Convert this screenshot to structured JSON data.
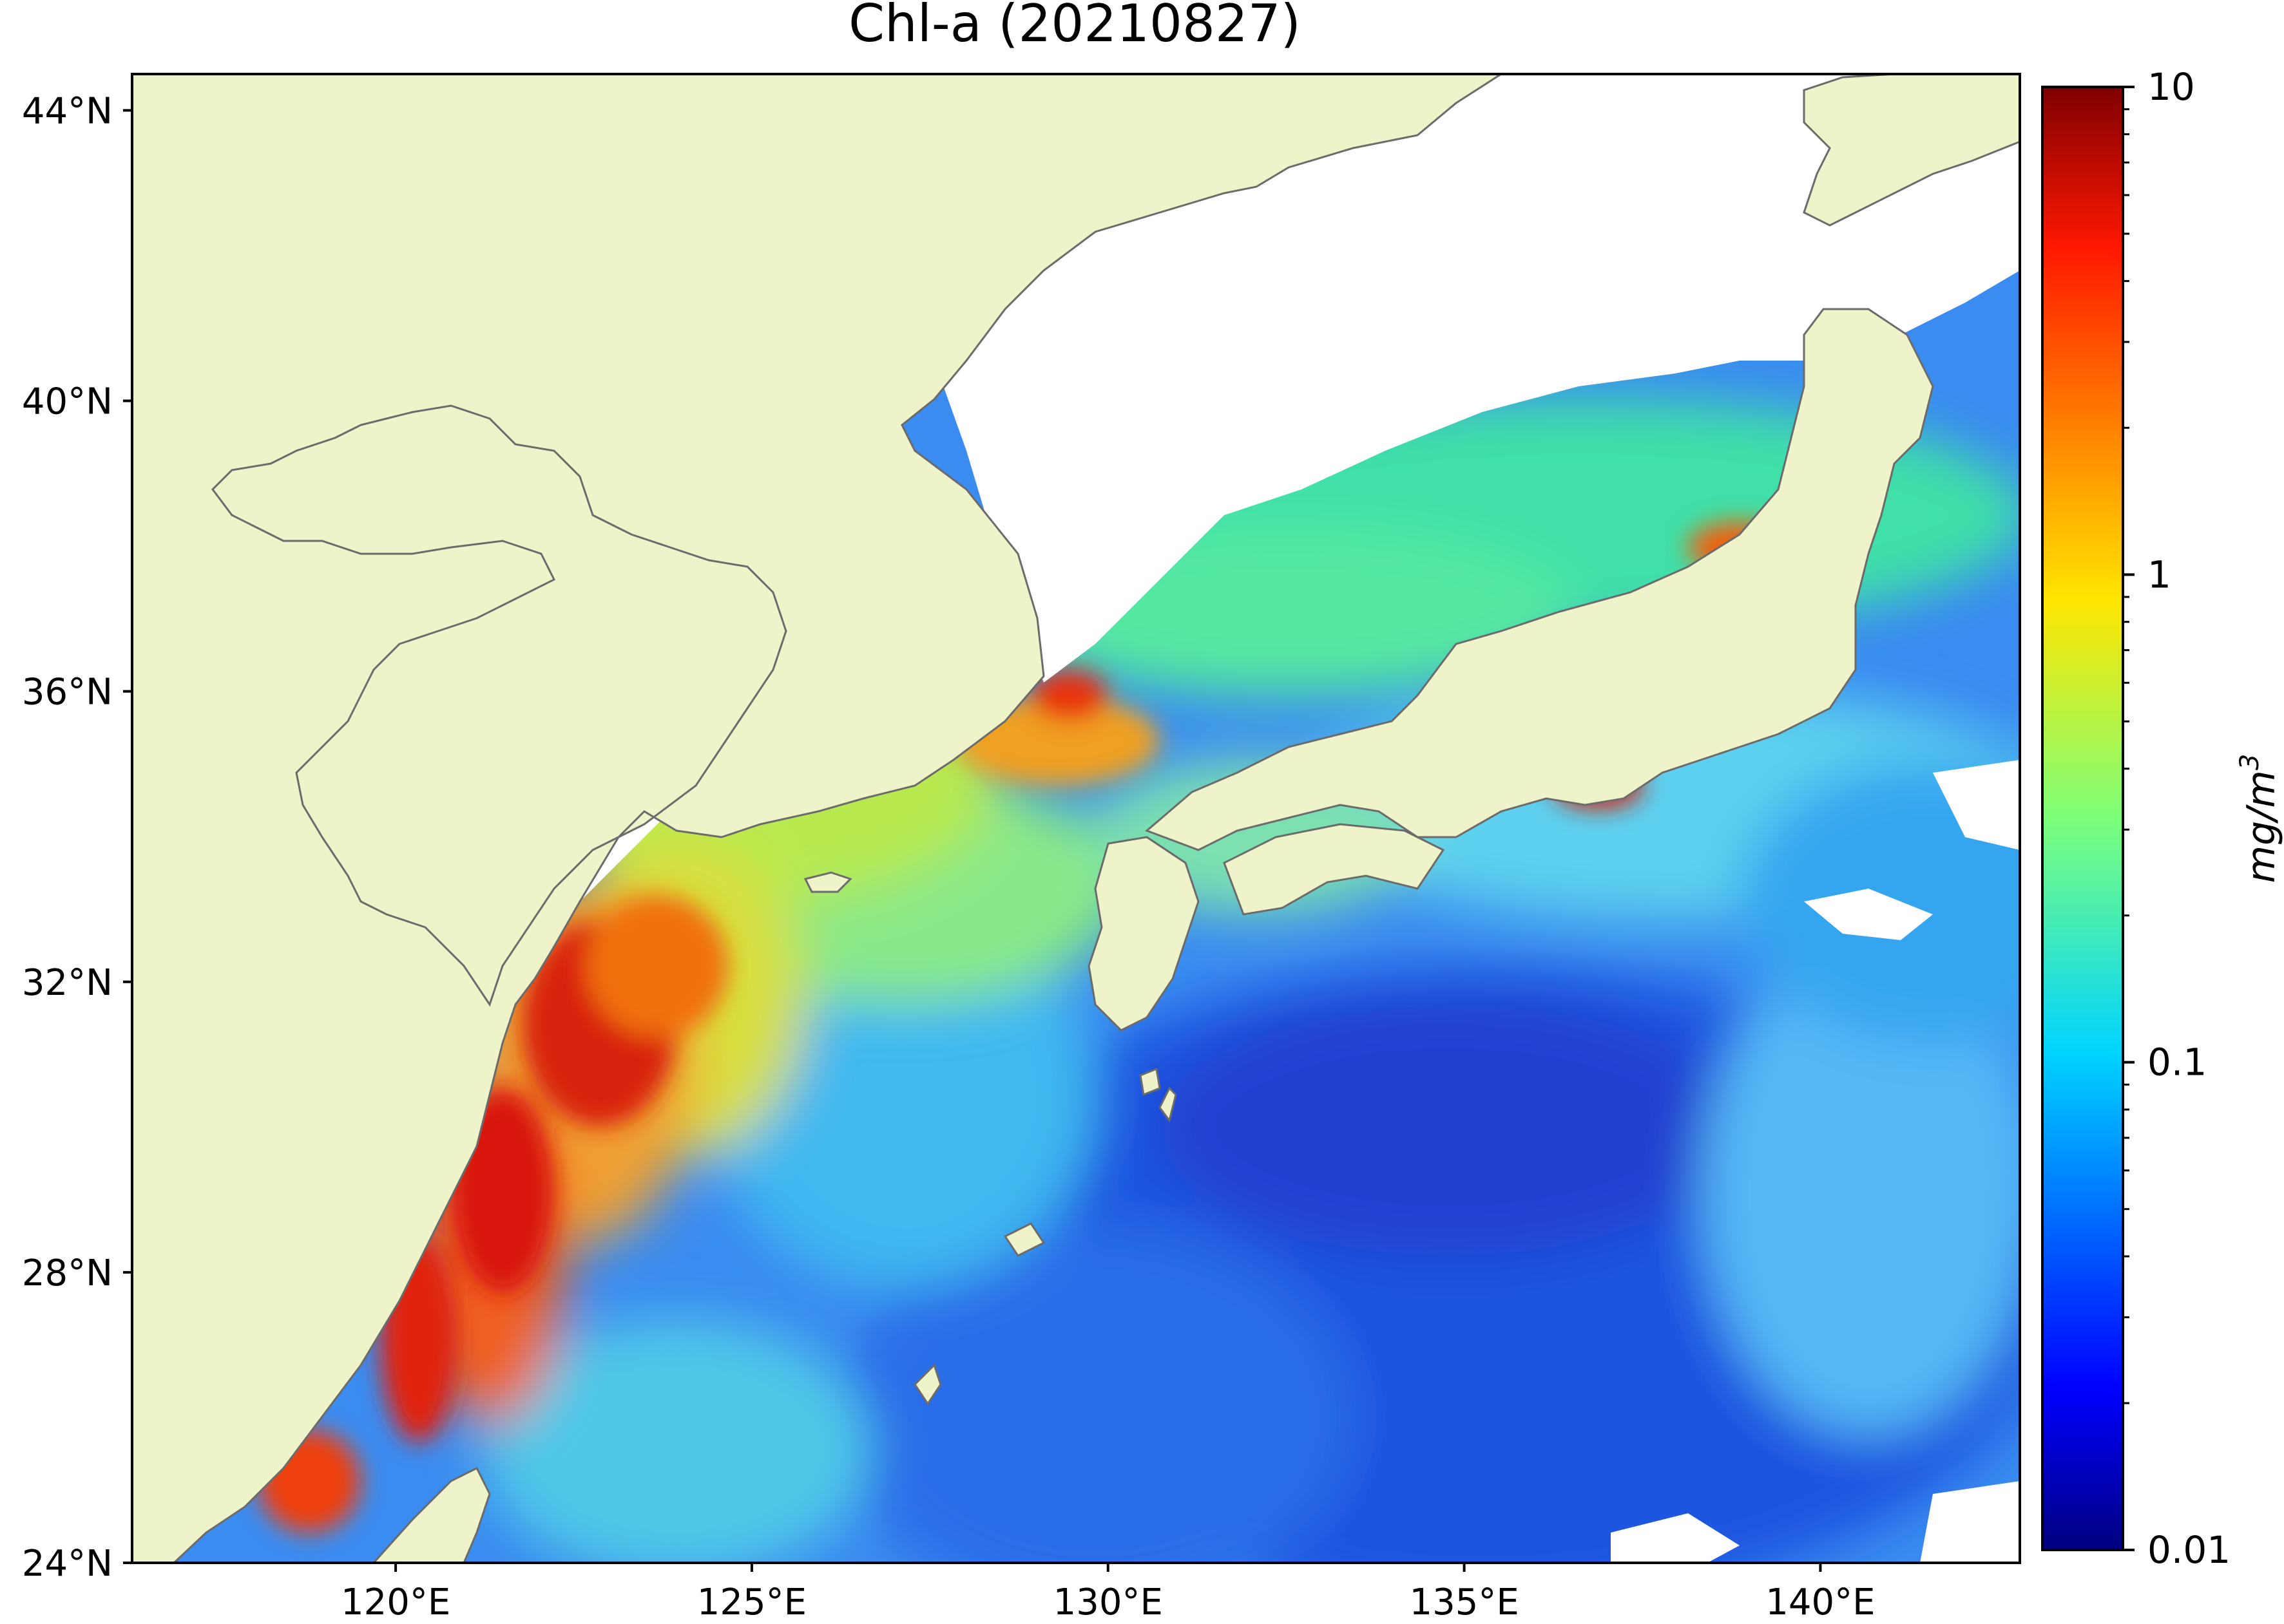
{
  "title": "Chl-a (20210827)",
  "map": {
    "lat_labels": [
      "44°N",
      "40°N",
      "36°N",
      "32°N",
      "28°N",
      "24°N"
    ],
    "lat_values": [
      44,
      40,
      36,
      32,
      28,
      24
    ],
    "lon_labels": [
      "120°E",
      "125°E",
      "130°E",
      "135°E",
      "140°E"
    ],
    "lon_values": [
      120,
      125,
      130,
      135,
      140
    ],
    "extent": {
      "lon_min": 116.3,
      "lon_max": 142.8,
      "lat_min": 24,
      "lat_max": 44.5
    },
    "colors": {
      "land": "#eff3c9",
      "no_data": "#ffffff",
      "coastline": "#6b6b6b"
    }
  },
  "colorbar": {
    "label": "mg/m",
    "label_superscript": "3",
    "scale": "log",
    "range": [
      0.01,
      10
    ],
    "tick_labels": [
      "10",
      "1",
      "0.1",
      "0.01"
    ],
    "tick_values": [
      10,
      1,
      0.1,
      0.01
    ],
    "colormap": "jet"
  }
}
